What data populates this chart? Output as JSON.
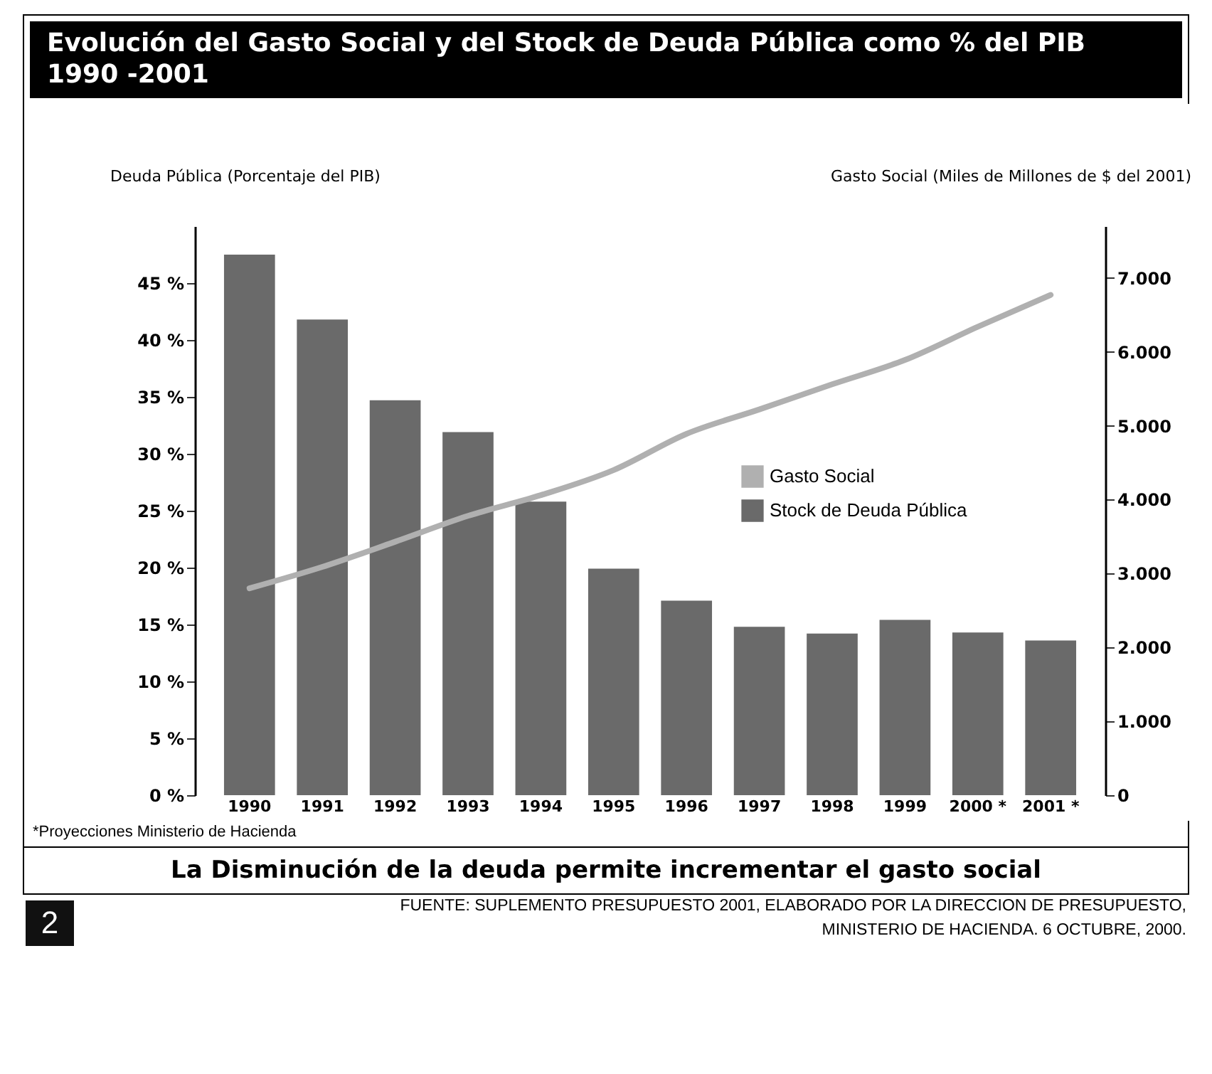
{
  "chart_data": {
    "type": "bar",
    "title": "Evolución del Gasto Social y del Stock de Deuda Pública como % del PIB 1990 -2001",
    "ylabel": "Deuda Pública (Porcentaje del PIB)",
    "y2label": "Gasto Social (Miles de Millones de $ del 2001)",
    "categories": [
      "1990",
      "1991",
      "1992",
      "1993",
      "1994",
      "1995",
      "1996",
      "1997",
      "1998",
      "1999",
      "2000 *",
      "2001 *"
    ],
    "series": [
      {
        "name": "Gasto Social",
        "type": "line",
        "axis": "y2",
        "color": "#b0b0b0",
        "values": [
          2800,
          3090,
          3430,
          3780,
          4060,
          4400,
          4890,
          5220,
          5560,
          5890,
          6340,
          6770
        ]
      },
      {
        "name": "Stock de Deuda Pública",
        "type": "bar",
        "color": "#6a6a6a",
        "values": [
          47.5,
          41.8,
          34.7,
          31.9,
          25.8,
          19.9,
          17.1,
          14.8,
          14.2,
          15.4,
          14.3,
          13.6
        ]
      }
    ],
    "ylim": [
      0,
      50
    ],
    "yticks": [
      {
        "value": 0,
        "label": "0 %"
      },
      {
        "value": 5,
        "label": "5 %"
      },
      {
        "value": 10,
        "label": "10 %"
      },
      {
        "value": 15,
        "label": "15 %"
      },
      {
        "value": 20,
        "label": "20 %"
      },
      {
        "value": 25,
        "label": "25 %"
      },
      {
        "value": 30,
        "label": "30 %"
      },
      {
        "value": 35,
        "label": "35 %"
      },
      {
        "value": 40,
        "label": "40 %"
      },
      {
        "value": 45,
        "label": "45 %"
      }
    ],
    "y2lim": [
      0,
      7700
    ],
    "y2ticks": [
      0,
      {
        "value": 1000,
        "label": "1.000"
      },
      {
        "value": 2000,
        "label": "2.000"
      },
      {
        "value": 3000,
        "label": "3.000"
      },
      {
        "value": 4000,
        "label": "4.000"
      },
      {
        "value": 5000,
        "label": "5.000"
      },
      {
        "value": 6000,
        "label": "6.000"
      },
      {
        "value": 7000,
        "label": "7.000"
      }
    ],
    "legend": "right",
    "annotations": [
      "*Proyecciones Ministerio de Hacienda",
      "La Disminución de la deuda permite incrementar el gasto social",
      "2",
      "FUENTE: SUPLEMENTO PRESUPUESTO 2001, ELABORADO POR LA DIRECCION DE PRESUPUESTO, MINISTERIO DE HACIENDA. 6 OCTUBRE, 2000."
    ]
  }
}
